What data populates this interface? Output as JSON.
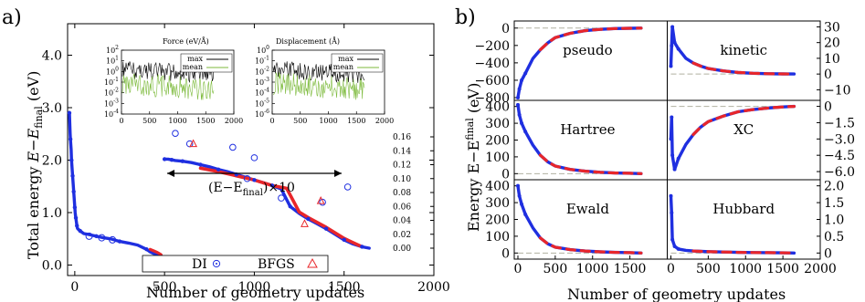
{
  "figure": {
    "panel_a_label": "a)",
    "panel_b_label": "b)"
  },
  "panel_a": {
    "xlabel": "Number of geometry updates",
    "ylabel_prefix": "Total energy ",
    "ylabel_math": "E−E",
    "ylabel_sub": "final",
    "ylabel_unit": " (eV)",
    "inset_label_prefix": "(E−E",
    "inset_label_sub": "final",
    "inset_label_suffix": ")×10",
    "legend": {
      "di": "DI",
      "bfgs": "BFGS"
    },
    "force_title": "Force (eV/Å)",
    "disp_title": "Displacement (Å)",
    "inset_legend": {
      "max": "max",
      "mean": "mean"
    }
  },
  "panel_b": {
    "xlabel": "Number of geometry updates",
    "ylabel": "Energy E−E",
    "ylabel_sup": "final",
    "ylabel_unit": " (eV)",
    "subplots": [
      "pseudo",
      "kinetic",
      "Hartree",
      "XC",
      "Ewald",
      "Hubbard"
    ]
  },
  "colors": {
    "di": "#1f2fe0",
    "bfgs": "#e8262a",
    "max": "#000000",
    "mean": "#7cba3b",
    "dash": "#b0b0a0"
  },
  "chart_data": [
    {
      "type": "scatter",
      "name": "panel_a_main",
      "xlabel": "Number of geometry updates",
      "ylabel": "Total energy E−E_final (eV)",
      "xlim": [
        -40,
        2000
      ],
      "ylim": [
        -0.2,
        4.6
      ],
      "x_ticks": [
        0,
        500,
        1000,
        1500,
        2000
      ],
      "y_ticks": [
        0.0,
        1.0,
        2.0,
        3.0,
        4.0
      ],
      "y_tick_labels": [
        "0.0",
        "1.0",
        "2.0",
        "3.0",
        "4.0"
      ],
      "series": [
        {
          "name": "DI",
          "x": [
            -30,
            -28,
            -26,
            -24,
            -22,
            -20,
            -18,
            -16,
            -14,
            -12,
            -10,
            -8,
            -6,
            -4,
            -2,
            0,
            2,
            4,
            6,
            8,
            10,
            12,
            15,
            20,
            30,
            50,
            80,
            120,
            160,
            200,
            250,
            300,
            350,
            400,
            420,
            440,
            460,
            480,
            490
          ],
          "y": [
            2.9,
            2.7,
            2.5,
            2.4,
            2.3,
            2.2,
            2.0,
            1.9,
            1.8,
            1.7,
            1.6,
            1.5,
            1.4,
            1.3,
            1.2,
            1.1,
            1.0,
            0.95,
            0.9,
            0.85,
            0.8,
            0.75,
            0.7,
            0.68,
            0.65,
            0.6,
            0.58,
            0.55,
            0.52,
            0.5,
            0.45,
            0.42,
            0.38,
            0.3,
            0.25,
            0.22,
            0.2,
            0.18,
            0.15
          ]
        },
        {
          "name": "BFGS",
          "x": [
            420,
            440,
            460,
            480
          ],
          "y": [
            0.3,
            0.27,
            0.24,
            0.2
          ]
        }
      ]
    },
    {
      "type": "scatter",
      "name": "panel_a_inset_scaled",
      "label": "(E−E_final)×10",
      "ylim": [
        0.0,
        0.16
      ],
      "y_ticks": [
        0.0,
        0.02,
        0.04,
        0.06,
        0.08,
        0.1,
        0.12,
        0.14,
        0.16
      ],
      "y_tick_labels": [
        "0.00",
        "0.02",
        "0.04",
        "0.06",
        "0.08",
        "0.10",
        "0.12",
        "0.14",
        "0.16"
      ],
      "series": [
        {
          "name": "DI",
          "x": [
            500,
            520,
            540,
            560,
            600,
            650,
            700,
            750,
            800,
            850,
            900,
            950,
            1000,
            1050,
            1100,
            1150,
            1200,
            1250,
            1300,
            1350,
            1400,
            1450,
            1500,
            1550,
            1600,
            1640
          ],
          "y": [
            0.128,
            0.128,
            0.127,
            0.126,
            0.125,
            0.123,
            0.12,
            0.117,
            0.113,
            0.11,
            0.106,
            0.102,
            0.098,
            0.094,
            0.09,
            0.085,
            0.06,
            0.05,
            0.042,
            0.035,
            0.028,
            0.02,
            0.012,
            0.006,
            0.002,
            0.0
          ]
        },
        {
          "name": "BFGS",
          "x": [
            700,
            800,
            900,
            1000,
            1100,
            1180,
            1250,
            1300,
            1400,
            1500,
            1600
          ],
          "y": [
            0.115,
            0.11,
            0.104,
            0.098,
            0.09,
            0.086,
            0.052,
            0.044,
            0.03,
            0.014,
            0.002
          ]
        }
      ],
      "outliers_DI": {
        "x": [
          560,
          640,
          880,
          960,
          1000,
          1150,
          1380,
          1520
        ],
        "y": [
          0.165,
          0.15,
          0.145,
          0.1,
          0.13,
          0.072,
          0.066,
          0.088
        ]
      },
      "outliers_BFGS": {
        "x": [
          660,
          1280,
          1370
        ],
        "y": [
          0.15,
          0.035,
          0.068
        ]
      }
    },
    {
      "type": "line",
      "name": "inset_force",
      "title": "Force (eV/Å)",
      "xlim": [
        0,
        2000
      ],
      "x_ticks": [
        0,
        500,
        1000,
        1500,
        2000
      ],
      "y_log": true,
      "y_tick_labels": [
        "10^2",
        "10^1",
        "10^0",
        "10^-1",
        "10^-2",
        "10^-3",
        "10^-4"
      ],
      "series": [
        {
          "name": "max"
        },
        {
          "name": "mean"
        }
      ]
    },
    {
      "type": "line",
      "name": "inset_displacement",
      "title": "Displacement (Å)",
      "xlim": [
        0,
        2000
      ],
      "x_ticks": [
        0,
        500,
        1000,
        1500,
        2000
      ],
      "y_log": true,
      "y_tick_labels": [
        "10^0",
        "10^-1",
        "10^-2",
        "10^-3",
        "10^-4",
        "10^-5",
        "10^-6"
      ],
      "series": [
        {
          "name": "max"
        },
        {
          "name": "mean"
        }
      ]
    },
    {
      "type": "scatter",
      "name": "panel_b_grid",
      "xlabel": "Number of geometry updates",
      "ylabel": "Energy E−E^final (eV)",
      "xlim": [
        0,
        2000
      ],
      "x_ticks": [
        0,
        500,
        1000,
        1500,
        2000
      ],
      "subplots": [
        {
          "name": "pseudo",
          "ylim": [
            -800,
            50
          ],
          "y_ticks": [
            0,
            -200,
            -400,
            -600,
            -800
          ],
          "side": "left",
          "x": [
            0,
            20,
            50,
            100,
            200,
            300,
            400,
            500,
            700,
            900,
            1100,
            1300,
            1500,
            1650
          ],
          "y": [
            -800,
            -700,
            -600,
            -520,
            -350,
            -250,
            -170,
            -110,
            -60,
            -30,
            -15,
            -6,
            -2,
            0
          ]
        },
        {
          "name": "kinetic",
          "ylim": [
            -15,
            32
          ],
          "y_ticks": [
            30,
            20,
            10,
            0,
            -10
          ],
          "side": "right",
          "x": [
            0,
            10,
            20,
            50,
            100,
            200,
            300,
            400,
            500,
            700,
            900,
            1100,
            1300,
            1500,
            1650
          ],
          "y": [
            5,
            18,
            30,
            20,
            16,
            10,
            7,
            5,
            3.5,
            2,
            1,
            0.5,
            0.2,
            0.1,
            0
          ]
        },
        {
          "name": "Hartree",
          "ylim": [
            -20,
            420
          ],
          "y_ticks": [
            400,
            300,
            200,
            100,
            0
          ],
          "side": "left",
          "x": [
            0,
            20,
            50,
            100,
            200,
            300,
            400,
            500,
            700,
            900,
            1100,
            1300,
            1500,
            1650
          ],
          "y": [
            410,
            350,
            300,
            250,
            170,
            110,
            70,
            45,
            25,
            15,
            8,
            4,
            2,
            0
          ]
        },
        {
          "name": "XC",
          "ylim": [
            -6.5,
            0.3
          ],
          "y_ticks": [
            0,
            -1.5,
            -3.0,
            -4.5,
            -6.0
          ],
          "y_tick_labels": [
            "0",
            "−1.5",
            "−3.0",
            "−4.5",
            "−6.0"
          ],
          "side": "right",
          "x": [
            0,
            10,
            20,
            50,
            100,
            200,
            300,
            400,
            500,
            700,
            900,
            1100,
            1300,
            1500,
            1650
          ],
          "y": [
            -3,
            -1,
            -4.5,
            -5.8,
            -4.8,
            -3.5,
            -2.6,
            -1.9,
            -1.4,
            -0.9,
            -0.5,
            -0.3,
            -0.15,
            -0.05,
            0
          ]
        },
        {
          "name": "Ewald",
          "ylim": [
            -20,
            420
          ],
          "y_ticks": [
            400,
            300,
            200,
            100,
            0
          ],
          "side": "left",
          "x": [
            0,
            20,
            50,
            100,
            200,
            300,
            400,
            500,
            700,
            900,
            1100,
            1300,
            1500,
            1650
          ],
          "y": [
            400,
            340,
            290,
            230,
            150,
            90,
            55,
            35,
            20,
            12,
            7,
            4,
            2,
            0
          ]
        },
        {
          "name": "Hubbard",
          "ylim": [
            -0.1,
            2.1
          ],
          "y_ticks": [
            2.0,
            1.5,
            1.0,
            0.5,
            0
          ],
          "y_tick_labels": [
            "2.0",
            "1.5",
            "1.0",
            "0.5",
            "0"
          ],
          "side": "right",
          "x": [
            0,
            10,
            20,
            50,
            100,
            200,
            300,
            400,
            500,
            700,
            900,
            1100,
            1300,
            1500,
            1650
          ],
          "y": [
            1.7,
            1.2,
            0.4,
            0.2,
            0.12,
            0.08,
            0.06,
            0.05,
            0.04,
            0.03,
            0.02,
            0.015,
            0.01,
            0.005,
            0
          ]
        }
      ]
    }
  ]
}
